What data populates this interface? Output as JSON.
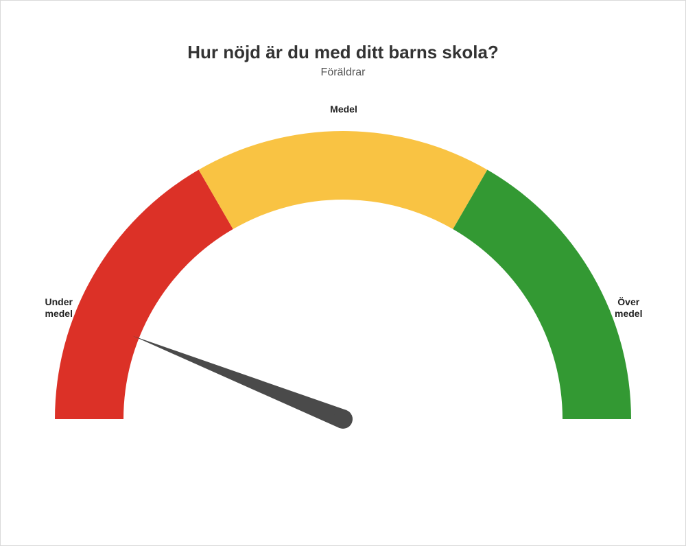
{
  "title": "Hur nöjd är du med ditt barns skola?",
  "subtitle": "Föräldrar",
  "gauge": {
    "type": "gauge",
    "min": 0,
    "max": 100,
    "value": 12,
    "outer_radius": 420,
    "inner_radius": 320,
    "needle_length": 330,
    "needle_base_halfwidth": 14,
    "needle_color": "#4a4a4a",
    "background_color": "#ffffff",
    "border_color": "#d9d9d9",
    "segments": [
      {
        "from": 0,
        "to": 33.3,
        "color": "#dc3127",
        "label": "Under\nmedel"
      },
      {
        "from": 33.3,
        "to": 66.7,
        "color": "#f9c343",
        "label": "Medel"
      },
      {
        "from": 66.7,
        "to": 100,
        "color": "#339933",
        "label": "Över\nmedel"
      }
    ],
    "title_fontsize": 26,
    "subtitle_fontsize": 16,
    "label_fontsize": 14,
    "label_fontweight": "700",
    "label_color": "#222222"
  }
}
